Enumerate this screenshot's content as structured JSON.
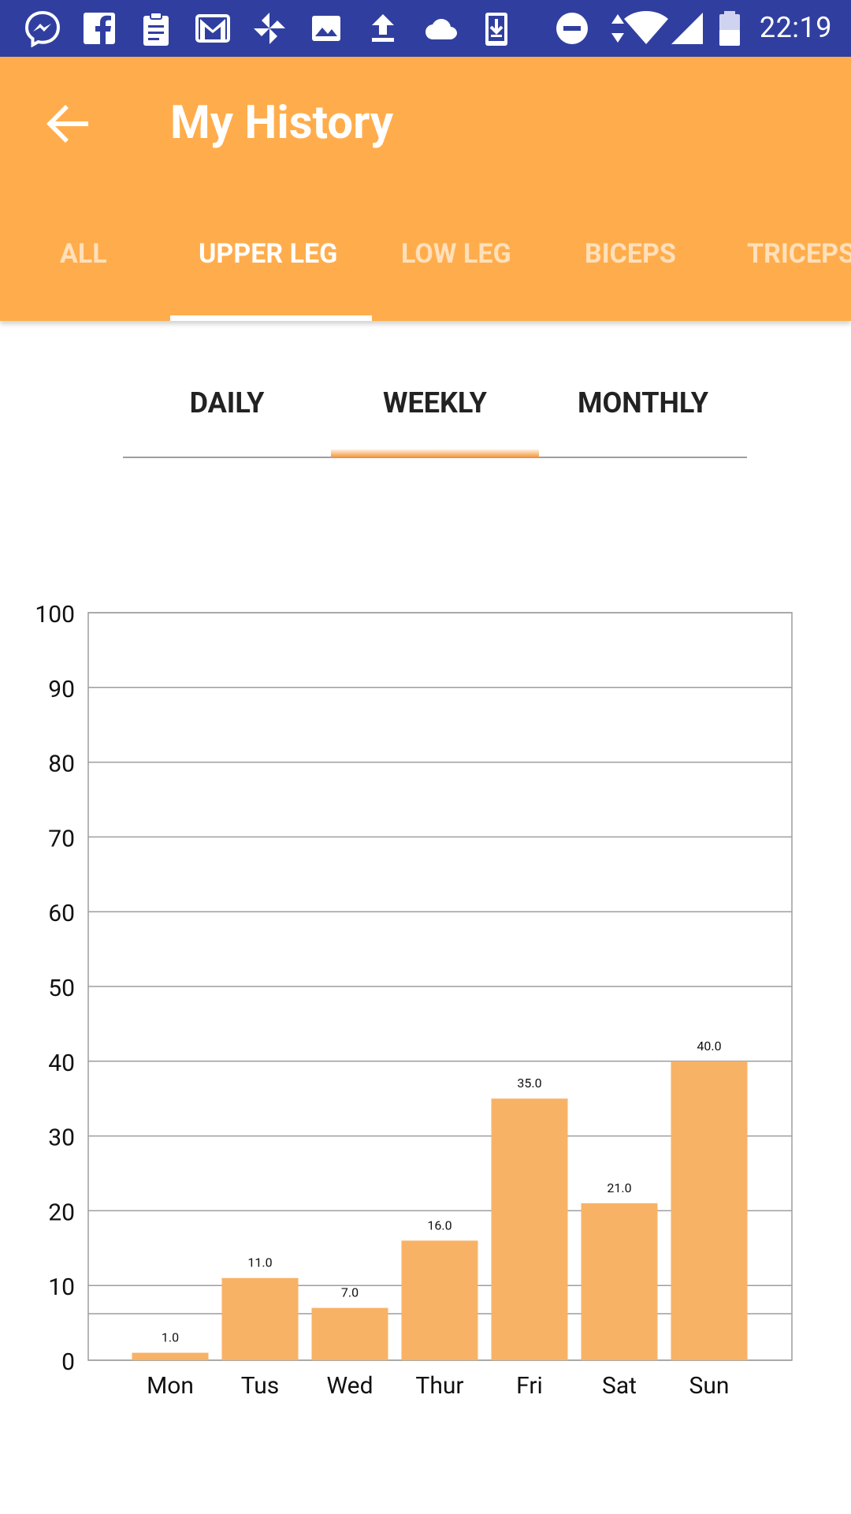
{
  "status_bar": {
    "time": "22:19",
    "left_icons": [
      "messenger-icon",
      "facebook-icon",
      "clipboard-icon",
      "gmail-icon",
      "pinwheel-icon",
      "image-icon",
      "upload-icon",
      "cloud-icon",
      "download-icon"
    ],
    "right_icons": [
      "do-not-disturb-icon",
      "data-arrows-icon",
      "wifi-icon",
      "signal-icon",
      "battery-icon"
    ]
  },
  "app_bar": {
    "title": "My History",
    "tabs": [
      {
        "label": "ALL"
      },
      {
        "label": "UPPER LEG"
      },
      {
        "label": "LOW LEG"
      },
      {
        "label": "BICEPS"
      },
      {
        "label": "TRICEPS"
      }
    ],
    "active_tab": "UPPER LEG"
  },
  "period_tabs": {
    "items": [
      {
        "label": "DAILY"
      },
      {
        "label": "WEEKLY"
      },
      {
        "label": "MONTHLY"
      }
    ],
    "active": "WEEKLY"
  },
  "colors": {
    "app_bar": "#ffad4c",
    "status_bar": "#303f9f",
    "bar": "#f8b266",
    "grid": "#9e9e9e"
  },
  "chart_data": {
    "type": "bar",
    "categories": [
      "Mon",
      "Tus",
      "Wed",
      "Thur",
      "Fri",
      "Sat",
      "Sun"
    ],
    "values": [
      1.0,
      11.0,
      7.0,
      16.0,
      35.0,
      21.0,
      40.0
    ],
    "value_labels": [
      "1.0",
      "11.0",
      "7.0",
      "16.0",
      "35.0",
      "21.0",
      "40.0"
    ],
    "yticks": [
      0,
      10,
      20,
      30,
      40,
      50,
      60,
      70,
      80,
      90,
      100
    ],
    "ylim": [
      0,
      100
    ],
    "grid": true,
    "legend": "none"
  }
}
